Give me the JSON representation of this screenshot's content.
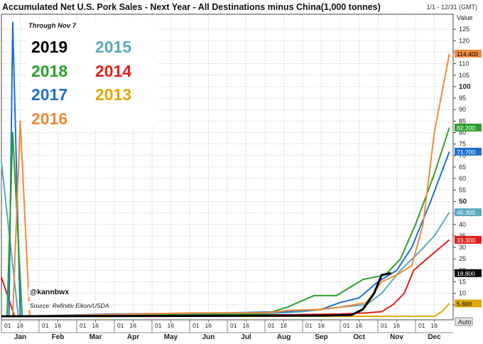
{
  "header": {
    "title": "Accumulated Net U.S. Pork Sales - Next Year - All Destinations minus China(1,000 tonnes)",
    "date_range": "1/1 - 12/31 (GMT)"
  },
  "annotations": {
    "through": "Through Nov 7",
    "handle": "@kannbwx",
    "source": "Source: Refinitiv Eikon/USDA"
  },
  "legend": [
    {
      "label": "2019",
      "color": "#000000"
    },
    {
      "label": "2015",
      "color": "#5aa9bd"
    },
    {
      "label": "2018",
      "color": "#2ca02c"
    },
    {
      "label": "2014",
      "color": "#e0201b"
    },
    {
      "label": "2017",
      "color": "#1f6fd1"
    },
    {
      "label": "2013",
      "color": "#e0a800"
    },
    {
      "label": "2016",
      "color": "#f08a3c"
    }
  ],
  "auto_label": "Auto",
  "chart_data": {
    "type": "line",
    "title": "Accumulated Net U.S. Pork Sales - Next Year - All Destinations minus China(1,000 tonnes)",
    "ylabel": "Value",
    "ylim": [
      0,
      130
    ],
    "y_ticks": [
      5,
      10,
      15,
      20,
      25,
      30,
      35,
      40,
      45,
      50,
      55,
      60,
      65,
      70,
      75,
      80,
      85,
      90,
      95,
      100,
      105,
      110,
      115,
      120,
      125
    ],
    "y_major_ticks": [
      50,
      100
    ],
    "x_axis": {
      "months": [
        "Jan",
        "Feb",
        "Mar",
        "Apr",
        "May",
        "Jun",
        "Jul",
        "Aug",
        "Sep",
        "Oct",
        "Nov",
        "Dec"
      ],
      "day_ticks": [
        "01",
        "16"
      ]
    },
    "grid": true,
    "series": [
      {
        "name": "2016",
        "color": "#f08a3c",
        "last_label": "114.400",
        "points": [
          [
            0.3,
            0
          ],
          [
            0.5,
            85
          ],
          [
            0.75,
            0
          ],
          [
            5,
            1.5
          ],
          [
            7,
            1.5
          ],
          [
            7.6,
            2.5
          ],
          [
            8.5,
            3
          ],
          [
            9,
            4
          ],
          [
            9.7,
            6
          ],
          [
            10.1,
            15
          ],
          [
            10.5,
            18
          ],
          [
            10.9,
            22
          ],
          [
            11.2,
            40
          ],
          [
            11.5,
            80
          ],
          [
            11.9,
            114.4
          ]
        ]
      },
      {
        "name": "2018",
        "color": "#2ca02c",
        "last_label": "82.200",
        "points": [
          [
            0.15,
            0
          ],
          [
            0.3,
            80
          ],
          [
            0.55,
            0
          ],
          [
            7,
            1
          ],
          [
            7.6,
            4
          ],
          [
            8.3,
            9
          ],
          [
            8.9,
            9
          ],
          [
            9.6,
            16
          ],
          [
            10.2,
            18
          ],
          [
            10.6,
            25
          ],
          [
            11,
            40
          ],
          [
            11.5,
            62
          ],
          [
            11.9,
            82.2
          ]
        ]
      },
      {
        "name": "2017",
        "color": "#1f6fd1",
        "last_label": "71.700",
        "points": [
          [
            0.2,
            0
          ],
          [
            0.3,
            128
          ],
          [
            0.5,
            0
          ],
          [
            3,
            1
          ],
          [
            6,
            1.5
          ],
          [
            7.5,
            2
          ],
          [
            8.5,
            3
          ],
          [
            9,
            6
          ],
          [
            9.5,
            8
          ],
          [
            10,
            15
          ],
          [
            10.5,
            20
          ],
          [
            10.9,
            30
          ],
          [
            11.4,
            50
          ],
          [
            11.9,
            71.7
          ]
        ]
      },
      {
        "name": "2015",
        "color": "#5aa9bd",
        "last_label": "45.300",
        "points": [
          [
            0,
            67
          ],
          [
            0.45,
            0
          ],
          [
            5,
            0.5
          ],
          [
            7,
            1
          ],
          [
            8,
            2
          ],
          [
            9,
            4
          ],
          [
            9.7,
            5
          ],
          [
            10.1,
            10
          ],
          [
            10.6,
            20
          ],
          [
            11.1,
            28
          ],
          [
            11.5,
            35
          ],
          [
            11.9,
            45.3
          ]
        ]
      },
      {
        "name": "2014",
        "color": "#e0201b",
        "last_label": "33.300",
        "points": [
          [
            0,
            17
          ],
          [
            0.35,
            0
          ],
          [
            3,
            0
          ],
          [
            7,
            0.5
          ],
          [
            9,
            1
          ],
          [
            9.7,
            1.5
          ],
          [
            10.1,
            2
          ],
          [
            10.4,
            5
          ],
          [
            10.7,
            10
          ],
          [
            10.95,
            20
          ],
          [
            11.3,
            25
          ],
          [
            11.9,
            33.3
          ]
        ]
      },
      {
        "name": "2019",
        "color": "#000000",
        "last_label": "18.800",
        "points": [
          [
            0,
            0
          ],
          [
            8.5,
            0.3
          ],
          [
            9.3,
            0.6
          ],
          [
            9.6,
            3
          ],
          [
            9.9,
            10
          ],
          [
            10.1,
            18
          ],
          [
            10.35,
            18.8
          ]
        ]
      },
      {
        "name": "2013",
        "color": "#e0a800",
        "last_label": "5.600",
        "points": [
          [
            0,
            0
          ],
          [
            11.5,
            0
          ],
          [
            11.7,
            2
          ],
          [
            11.9,
            5.6
          ]
        ]
      }
    ]
  }
}
